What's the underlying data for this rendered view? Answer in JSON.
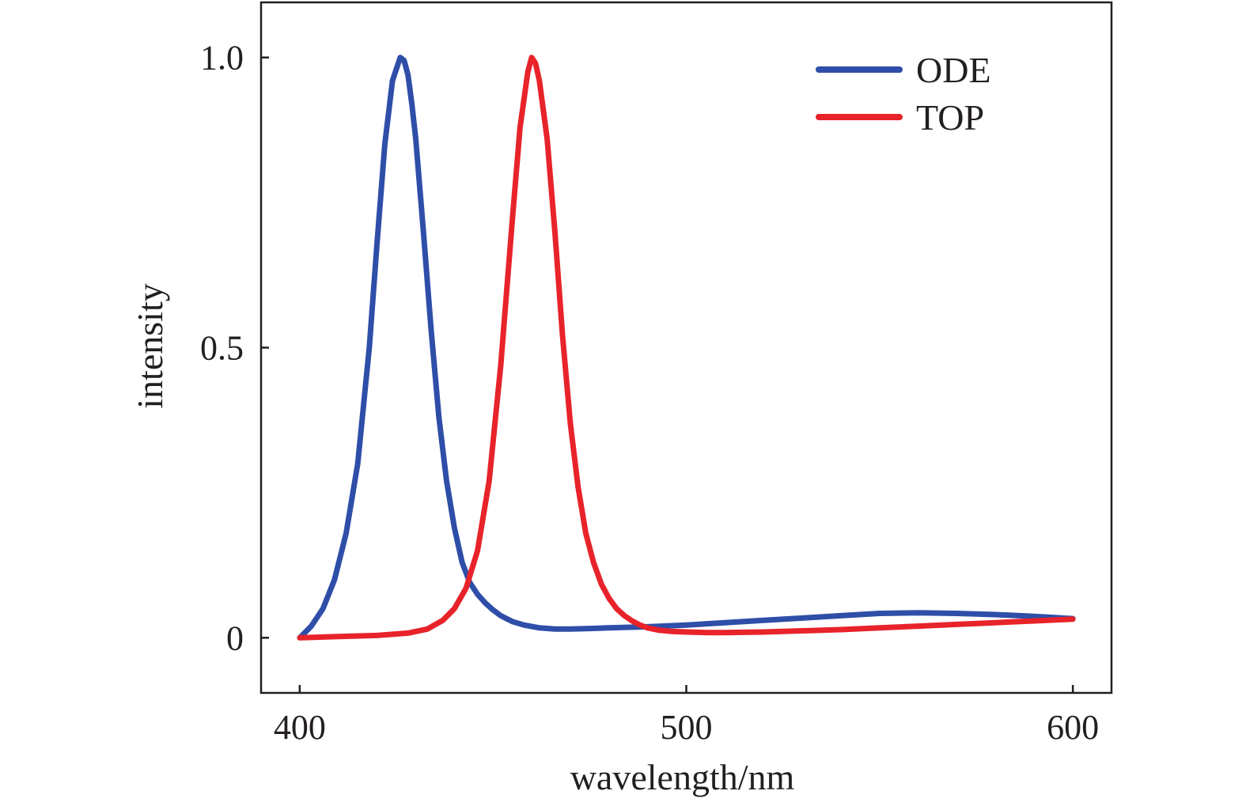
{
  "chart_data": {
    "type": "line",
    "title": "",
    "xlabel": "wavelength/nm",
    "ylabel": "intensity",
    "xlim": [
      390,
      610
    ],
    "ylim": [
      -0.095,
      1.095
    ],
    "x_ticks": [
      400,
      500,
      600
    ],
    "x_tick_labels": [
      "400",
      "500",
      "600"
    ],
    "y_ticks": [
      0,
      0.5,
      1.0
    ],
    "y_tick_labels": [
      "0",
      "0.5",
      "1.0"
    ],
    "grid": false,
    "legend": {
      "position": "top-right"
    },
    "series": [
      {
        "name": "ODE",
        "color": "#2e4ea8",
        "x": [
          400,
          403,
          406,
          409,
          412,
          415,
          418,
          420,
          422,
          424,
          426,
          427,
          428,
          429,
          430,
          432,
          434,
          436,
          438,
          440,
          442,
          444,
          446,
          448,
          450,
          452,
          455,
          458,
          462,
          466,
          470,
          475,
          480,
          490,
          500,
          510,
          520,
          530,
          540,
          550,
          560,
          570,
          580,
          590,
          600
        ],
        "y": [
          0.0,
          0.02,
          0.05,
          0.1,
          0.18,
          0.3,
          0.5,
          0.68,
          0.85,
          0.96,
          1.0,
          0.995,
          0.97,
          0.92,
          0.86,
          0.7,
          0.53,
          0.38,
          0.27,
          0.19,
          0.13,
          0.095,
          0.075,
          0.06,
          0.048,
          0.038,
          0.028,
          0.022,
          0.017,
          0.015,
          0.015,
          0.016,
          0.017,
          0.019,
          0.022,
          0.026,
          0.03,
          0.034,
          0.038,
          0.042,
          0.043,
          0.042,
          0.04,
          0.037,
          0.033
        ]
      },
      {
        "name": "TOP",
        "color": "#e8232a",
        "x": [
          400,
          410,
          420,
          428,
          433,
          437,
          440,
          443,
          446,
          449,
          452,
          455,
          457,
          459,
          460,
          461,
          462,
          464,
          466,
          468,
          470,
          472,
          474,
          476,
          478,
          480,
          482,
          484,
          486,
          488,
          490,
          493,
          496,
          500,
          505,
          510,
          520,
          530,
          540,
          550,
          560,
          570,
          580,
          590,
          600
        ],
        "y": [
          0.0,
          0.002,
          0.004,
          0.008,
          0.015,
          0.03,
          0.05,
          0.085,
          0.15,
          0.27,
          0.47,
          0.72,
          0.88,
          0.975,
          1.0,
          0.99,
          0.96,
          0.86,
          0.7,
          0.52,
          0.37,
          0.26,
          0.18,
          0.13,
          0.093,
          0.068,
          0.05,
          0.038,
          0.029,
          0.022,
          0.017,
          0.013,
          0.011,
          0.01,
          0.009,
          0.009,
          0.01,
          0.012,
          0.014,
          0.017,
          0.02,
          0.023,
          0.026,
          0.029,
          0.032
        ]
      }
    ]
  }
}
